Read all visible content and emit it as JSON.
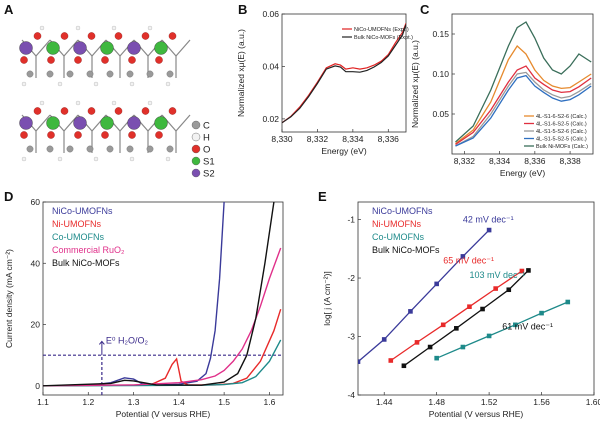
{
  "panels": {
    "A": {
      "letter": "A",
      "legend": [
        {
          "label": "C",
          "color": "#9a9a9a"
        },
        {
          "label": "H",
          "color": "#f2f2f2"
        },
        {
          "label": "O",
          "color": "#e0302a"
        },
        {
          "label": "S1",
          "color": "#3fb83f"
        },
        {
          "label": "S2",
          "color": "#7a4fb0"
        }
      ]
    }
  },
  "chart_data": [
    {
      "id": "B",
      "letter": "B",
      "type": "line",
      "xlabel": "Energy (eV)",
      "ylabel": "Normalized xμ(E) (a.u.)",
      "xlim": [
        8330,
        8337
      ],
      "ylim": [
        0.015,
        0.06
      ],
      "xticks": [
        8330,
        8332,
        8334,
        8336
      ],
      "xtick_labels": [
        "8,330",
        "8,332",
        "8,334",
        "8,336"
      ],
      "yticks": [
        0.02,
        0.04,
        0.06
      ],
      "ytick_labels": [
        "0.02",
        "0.04",
        "0.06"
      ],
      "legend": "top-right",
      "series": [
        {
          "name": "NiCo-UMOFNs (Expt.)",
          "color": "#e02020",
          "x": [
            8330,
            8330.5,
            8331,
            8331.5,
            8332,
            8332.5,
            8333,
            8333.3,
            8333.6,
            8334,
            8334.4,
            8334.8,
            8335.2,
            8335.6,
            8336,
            8336.4,
            8336.8,
            8337
          ],
          "y": [
            0.0185,
            0.021,
            0.0245,
            0.029,
            0.034,
            0.0395,
            0.041,
            0.0405,
            0.039,
            0.0395,
            0.039,
            0.0395,
            0.0405,
            0.042,
            0.0445,
            0.049,
            0.053,
            0.0565
          ]
        },
        {
          "name": "Bulk NiCo-MOFs (Expt.)",
          "color": "#222222",
          "x": [
            8330,
            8330.5,
            8331,
            8331.5,
            8332,
            8332.5,
            8333,
            8333.3,
            8333.6,
            8334,
            8334.4,
            8334.8,
            8335.2,
            8335.6,
            8336,
            8336.4,
            8336.8,
            8337
          ],
          "y": [
            0.0185,
            0.0208,
            0.024,
            0.0285,
            0.0335,
            0.039,
            0.0402,
            0.0398,
            0.038,
            0.038,
            0.0378,
            0.0385,
            0.0398,
            0.0415,
            0.044,
            0.048,
            0.052,
            0.056
          ]
        }
      ]
    },
    {
      "id": "C",
      "letter": "C",
      "type": "line",
      "xlabel": "Energy (eV)",
      "ylabel": "Normalized xμ(E) (a.u.)",
      "xlim": [
        8331.3,
        8339.3
      ],
      "ylim": [
        0.0,
        0.175
      ],
      "xticks": [
        8332,
        8334,
        8336,
        8338
      ],
      "xtick_labels": [
        "8,332",
        "8,334",
        "8,336",
        "8,338"
      ],
      "yticks": [
        0.05,
        0.1,
        0.15
      ],
      "ytick_labels": [
        "0.05",
        "0.10",
        "0.15"
      ],
      "legend": "bottom-right",
      "series": [
        {
          "name": "4L-S1-6-S2-6 (Calc.)",
          "color": "#e68a2e",
          "x": [
            8331.5,
            8332.5,
            8333.5,
            8334.5,
            8335,
            8335.5,
            8336,
            8336.5,
            8337,
            8337.5,
            8338,
            8338.5,
            8339.2
          ],
          "y": [
            0.013,
            0.03,
            0.065,
            0.118,
            0.135,
            0.125,
            0.105,
            0.092,
            0.085,
            0.082,
            0.083,
            0.09,
            0.1
          ]
        },
        {
          "name": "4L-S1-6-S2-5 (Calc.)",
          "color": "#e03040",
          "x": [
            8331.5,
            8332.5,
            8333.5,
            8334.5,
            8335,
            8335.5,
            8336,
            8336.5,
            8337,
            8337.5,
            8338,
            8338.5,
            8339.2
          ],
          "y": [
            0.012,
            0.027,
            0.055,
            0.09,
            0.105,
            0.11,
            0.095,
            0.087,
            0.08,
            0.077,
            0.078,
            0.084,
            0.095
          ]
        },
        {
          "name": "4L-S1-5-S2-6 (Calc.)",
          "color": "#9a9a9a",
          "x": [
            8331.5,
            8332.5,
            8333.5,
            8334.5,
            8335,
            8335.5,
            8336,
            8336.5,
            8337,
            8337.5,
            8338,
            8338.5,
            8339.2
          ],
          "y": [
            0.01,
            0.022,
            0.05,
            0.085,
            0.1,
            0.102,
            0.09,
            0.08,
            0.074,
            0.07,
            0.072,
            0.078,
            0.088
          ]
        },
        {
          "name": "4L-S1-5-S2-5 (Calc.)",
          "color": "#2e6fc0",
          "x": [
            8331.5,
            8332.5,
            8333.5,
            8334.5,
            8335,
            8335.5,
            8336,
            8336.5,
            8337,
            8337.5,
            8338,
            8338.5,
            8339.2
          ],
          "y": [
            0.01,
            0.02,
            0.045,
            0.08,
            0.095,
            0.098,
            0.085,
            0.077,
            0.07,
            0.066,
            0.068,
            0.074,
            0.085
          ]
        },
        {
          "name": "Bulk Ni-MOFs (Calc.)",
          "color": "#3a6e5a",
          "x": [
            8331.5,
            8332.5,
            8333.5,
            8334.5,
            8335,
            8335.5,
            8336,
            8336.5,
            8337,
            8337.5,
            8338,
            8338.5,
            8339.2
          ],
          "y": [
            0.015,
            0.035,
            0.08,
            0.135,
            0.158,
            0.165,
            0.145,
            0.12,
            0.105,
            0.1,
            0.11,
            0.125,
            0.115
          ]
        }
      ]
    },
    {
      "id": "D",
      "letter": "D",
      "type": "line",
      "xlabel": "Potential (V versus RHE)",
      "ylabel": "Current density (mA cm⁻²)",
      "xlim": [
        1.1,
        1.63
      ],
      "ylim": [
        -3,
        60
      ],
      "xticks": [
        1.1,
        1.2,
        1.3,
        1.4,
        1.5,
        1.6
      ],
      "xtick_labels": [
        "1.1",
        "1.2",
        "1.3",
        "1.4",
        "1.5",
        "1.6"
      ],
      "yticks": [
        0,
        20,
        40,
        60
      ],
      "ytick_labels": [
        "0",
        "20",
        "40",
        "60"
      ],
      "legend": "top-left",
      "reference": {
        "current_density": 10,
        "potential": 1.23,
        "label": "E⁰ H₂O/O₂"
      },
      "series": [
        {
          "name": "NiCo-UMOFNs",
          "color": "#3a3a9a",
          "x": [
            1.1,
            1.2,
            1.25,
            1.28,
            1.3,
            1.32,
            1.35,
            1.4,
            1.44,
            1.46,
            1.47,
            1.48,
            1.49,
            1.5
          ],
          "y": [
            0,
            0.1,
            1.0,
            2.6,
            2.2,
            0.6,
            0.3,
            0.5,
            1.5,
            4,
            9,
            18,
            35,
            60
          ]
        },
        {
          "name": "Ni-UMOFNs",
          "color": "#e82a2a",
          "x": [
            1.1,
            1.2,
            1.3,
            1.34,
            1.37,
            1.385,
            1.395,
            1.405,
            1.42,
            1.48,
            1.52,
            1.55,
            1.58,
            1.61,
            1.625
          ],
          "y": [
            0,
            0.1,
            0.2,
            0.5,
            2.5,
            7,
            8.8,
            1.5,
            0.3,
            0.3,
            0.8,
            2.5,
            8,
            18,
            25
          ]
        },
        {
          "name": "Co-UMOFNs",
          "color": "#1e8a8a",
          "x": [
            1.1,
            1.3,
            1.45,
            1.5,
            1.54,
            1.57,
            1.6,
            1.625
          ],
          "y": [
            0,
            0.1,
            0.2,
            0.4,
            1,
            3,
            8,
            15
          ]
        },
        {
          "name": "Commercial RuO₂",
          "color": "#e0308a",
          "x": [
            1.1,
            1.3,
            1.4,
            1.45,
            1.48,
            1.5,
            1.52,
            1.54,
            1.56,
            1.58,
            1.6,
            1.625
          ],
          "y": [
            0,
            0.3,
            1.0,
            2.0,
            3.2,
            5,
            8,
            12,
            18,
            26,
            35,
            45
          ]
        },
        {
          "name": "Bulk NiCo-MOFs",
          "color": "#111111",
          "x": [
            1.1,
            1.25,
            1.28,
            1.3,
            1.35,
            1.45,
            1.5,
            1.53,
            1.55,
            1.57,
            1.59,
            1.61
          ],
          "y": [
            0,
            0.8,
            1.8,
            1.6,
            0.3,
            0.2,
            1.2,
            4,
            10,
            22,
            40,
            60
          ]
        }
      ]
    },
    {
      "id": "E",
      "letter": "E",
      "type": "scatter",
      "xlabel": "Potential (V versus RHE)",
      "ylabel": "log[ j (A cm⁻²)]",
      "xlim": [
        1.42,
        1.6
      ],
      "ylim": [
        -4,
        -0.7
      ],
      "xticks": [
        1.44,
        1.48,
        1.52,
        1.56,
        1.6
      ],
      "xtick_labels": [
        "1.44",
        "1.48",
        "1.52",
        "1.56",
        "1.60"
      ],
      "yticks": [
        -4,
        -3,
        -2,
        -1
      ],
      "ytick_labels": [
        "-4",
        "-3",
        "-2",
        "-1"
      ],
      "legend": "top-left",
      "series": [
        {
          "name": "NiCo-UMOFNs",
          "color": "#3a3a9a",
          "tafel": "42 mV dec⁻¹",
          "x": [
            1.42,
            1.44,
            1.46,
            1.48,
            1.5,
            1.52
          ],
          "y": [
            -3.43,
            -3.05,
            -2.57,
            -2.1,
            -1.63,
            -1.18
          ]
        },
        {
          "name": "Ni-UMOFNs",
          "color": "#e82a2a",
          "tafel": "65 mV dec⁻¹",
          "x": [
            1.445,
            1.465,
            1.485,
            1.505,
            1.525,
            1.545
          ],
          "y": [
            -3.41,
            -3.1,
            -2.8,
            -2.49,
            -2.18,
            -1.88
          ]
        },
        {
          "name": "Co-UMOFNs",
          "color": "#1e8a8a",
          "tafel": "103 mV dec⁻¹",
          "x": [
            1.48,
            1.5,
            1.52,
            1.54,
            1.56,
            1.58
          ],
          "y": [
            -3.37,
            -3.18,
            -2.99,
            -2.8,
            -2.6,
            -2.41
          ]
        },
        {
          "name": "Bulk NiCo-MOFs",
          "color": "#111111",
          "tafel": "61 mV dec⁻¹",
          "x": [
            1.455,
            1.475,
            1.495,
            1.515,
            1.535,
            1.55
          ],
          "y": [
            -3.5,
            -3.18,
            -2.86,
            -2.53,
            -2.2,
            -1.87
          ]
        }
      ]
    }
  ]
}
